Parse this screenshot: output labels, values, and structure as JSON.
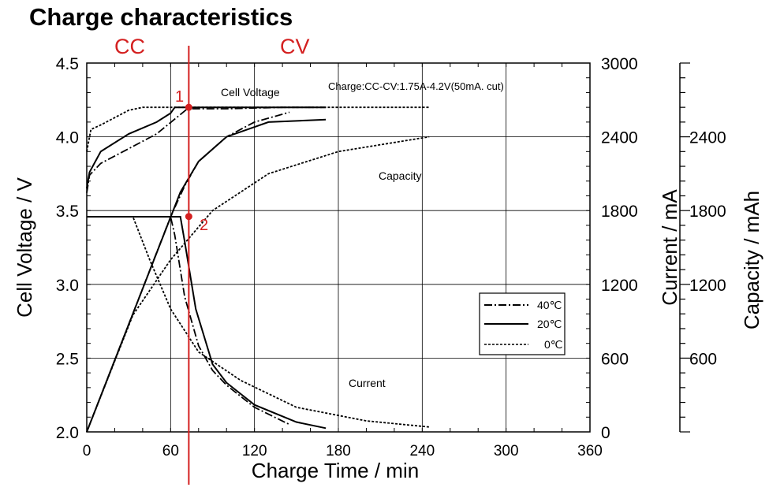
{
  "chart_data": {
    "type": "line",
    "title": "Charge characteristics",
    "xlabel": "Charge  Time  /  min",
    "ylabel": "Cell  Voltage  /  V",
    "y2label": "Current  /  mA",
    "y3label": "Capacity  /  mAh",
    "xlim": [
      0,
      360
    ],
    "ylim": [
      2.0,
      4.5
    ],
    "y2lim": [
      0,
      3000
    ],
    "x_ticks": [
      "0",
      "60",
      "120",
      "180",
      "240",
      "300",
      "360"
    ],
    "y_ticks": [
      "2.0",
      "2.5",
      "3.0",
      "3.5",
      "4.0",
      "4.5"
    ],
    "y2_ticks": [
      "0",
      "600",
      "1200",
      "1800",
      "2400",
      "3000"
    ],
    "y3_ticks": [
      "600",
      "1200",
      "1800",
      "2400"
    ],
    "grid": true,
    "legend_position": "lower-right inside plot",
    "phase_labels": {
      "cc": "CC",
      "cv": "CV"
    },
    "cc_cv_boundary_min": 73,
    "markers": [
      {
        "label": "1",
        "x": 73,
        "y": 4.2
      },
      {
        "label": "2",
        "x": 73,
        "y": 3.46
      }
    ],
    "annotations": [
      {
        "text": "Cell  Voltage"
      },
      {
        "text": "Charge:CC-CV:1.75A-4.2V(50mA. cut)"
      },
      {
        "text": "Capacity"
      },
      {
        "text": "Current"
      }
    ],
    "series": [
      {
        "name": "40℃",
        "style": "dash-dot",
        "voltage": [
          [
            0,
            3.62
          ],
          [
            2,
            3.74
          ],
          [
            10,
            3.82
          ],
          [
            30,
            3.92
          ],
          [
            50,
            4.02
          ],
          [
            63,
            4.12
          ],
          [
            72,
            4.19
          ],
          [
            85,
            4.19
          ],
          [
            100,
            4.19
          ],
          [
            140,
            4.2
          ],
          [
            170,
            4.2
          ]
        ],
        "current_mA": [
          [
            0,
            1750
          ],
          [
            60,
            1750
          ],
          [
            63,
            1600
          ],
          [
            70,
            1100
          ],
          [
            80,
            700
          ],
          [
            90,
            500
          ],
          [
            100,
            380
          ],
          [
            120,
            200
          ],
          [
            145,
            60
          ]
        ],
        "capacity_mAh": [
          [
            0,
            0
          ],
          [
            60,
            1750
          ],
          [
            70,
            2000
          ],
          [
            80,
            2200
          ],
          [
            100,
            2400
          ],
          [
            120,
            2520
          ],
          [
            145,
            2600
          ]
        ]
      },
      {
        "name": "20℃",
        "style": "solid",
        "voltage": [
          [
            0,
            3.65
          ],
          [
            2,
            3.76
          ],
          [
            10,
            3.9
          ],
          [
            30,
            4.02
          ],
          [
            50,
            4.1
          ],
          [
            60,
            4.16
          ],
          [
            63,
            4.2
          ],
          [
            100,
            4.2
          ],
          [
            171,
            4.2
          ]
        ],
        "current_mA": [
          [
            0,
            1750
          ],
          [
            67,
            1750
          ],
          [
            70,
            1550
          ],
          [
            78,
            1000
          ],
          [
            90,
            550
          ],
          [
            100,
            400
          ],
          [
            120,
            220
          ],
          [
            150,
            80
          ],
          [
            171,
            30
          ]
        ],
        "capacity_mAh": [
          [
            0,
            0
          ],
          [
            67,
            1950
          ],
          [
            80,
            2200
          ],
          [
            100,
            2400
          ],
          [
            130,
            2520
          ],
          [
            171,
            2540
          ]
        ]
      },
      {
        "name": "0℃",
        "style": "dashed",
        "voltage": [
          [
            0,
            3.9
          ],
          [
            3,
            4.05
          ],
          [
            10,
            4.08
          ],
          [
            30,
            4.18
          ],
          [
            40,
            4.2
          ],
          [
            245,
            4.2
          ]
        ],
        "current_mA": [
          [
            0,
            1750
          ],
          [
            33,
            1750
          ],
          [
            45,
            1400
          ],
          [
            60,
            1000
          ],
          [
            80,
            650
          ],
          [
            110,
            420
          ],
          [
            150,
            200
          ],
          [
            200,
            90
          ],
          [
            245,
            40
          ]
        ],
        "capacity_mAh": [
          [
            0,
            0
          ],
          [
            33,
            950
          ],
          [
            60,
            1400
          ],
          [
            90,
            1800
          ],
          [
            130,
            2100
          ],
          [
            180,
            2280
          ],
          [
            245,
            2400
          ]
        ]
      }
    ]
  }
}
